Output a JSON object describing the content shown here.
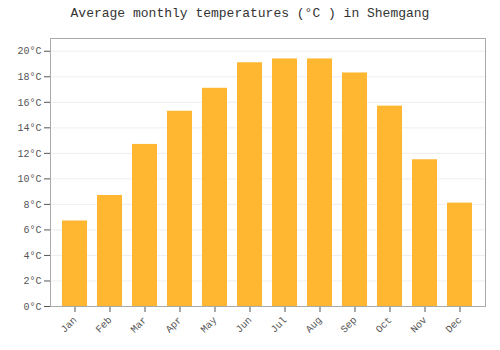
{
  "chart_data": {
    "type": "bar",
    "title": "Average monthly temperatures (°C ) in Shemgang",
    "categories": [
      "Jan",
      "Feb",
      "Mar",
      "Apr",
      "May",
      "Jun",
      "Jul",
      "Aug",
      "Sep",
      "Oct",
      "Nov",
      "Dec"
    ],
    "values": [
      6.7,
      8.7,
      12.7,
      15.3,
      17.1,
      19.1,
      19.4,
      19.4,
      18.3,
      15.7,
      11.5,
      8.1
    ],
    "color": "#FFB732",
    "ylim": [
      0,
      21
    ],
    "yticks": [
      {
        "value": 0,
        "label": "0°C"
      },
      {
        "value": 2,
        "label": "2°C"
      },
      {
        "value": 4,
        "label": "4°C"
      },
      {
        "value": 6,
        "label": "6°C"
      },
      {
        "value": 8,
        "label": "8°C"
      },
      {
        "value": 10,
        "label": "10°C"
      },
      {
        "value": 12,
        "label": "12°C"
      },
      {
        "value": 14,
        "label": "14°C"
      },
      {
        "value": 16,
        "label": "16°C"
      },
      {
        "value": 18,
        "label": "18°C"
      },
      {
        "value": 20,
        "label": "20°C"
      }
    ],
    "grid": true
  }
}
